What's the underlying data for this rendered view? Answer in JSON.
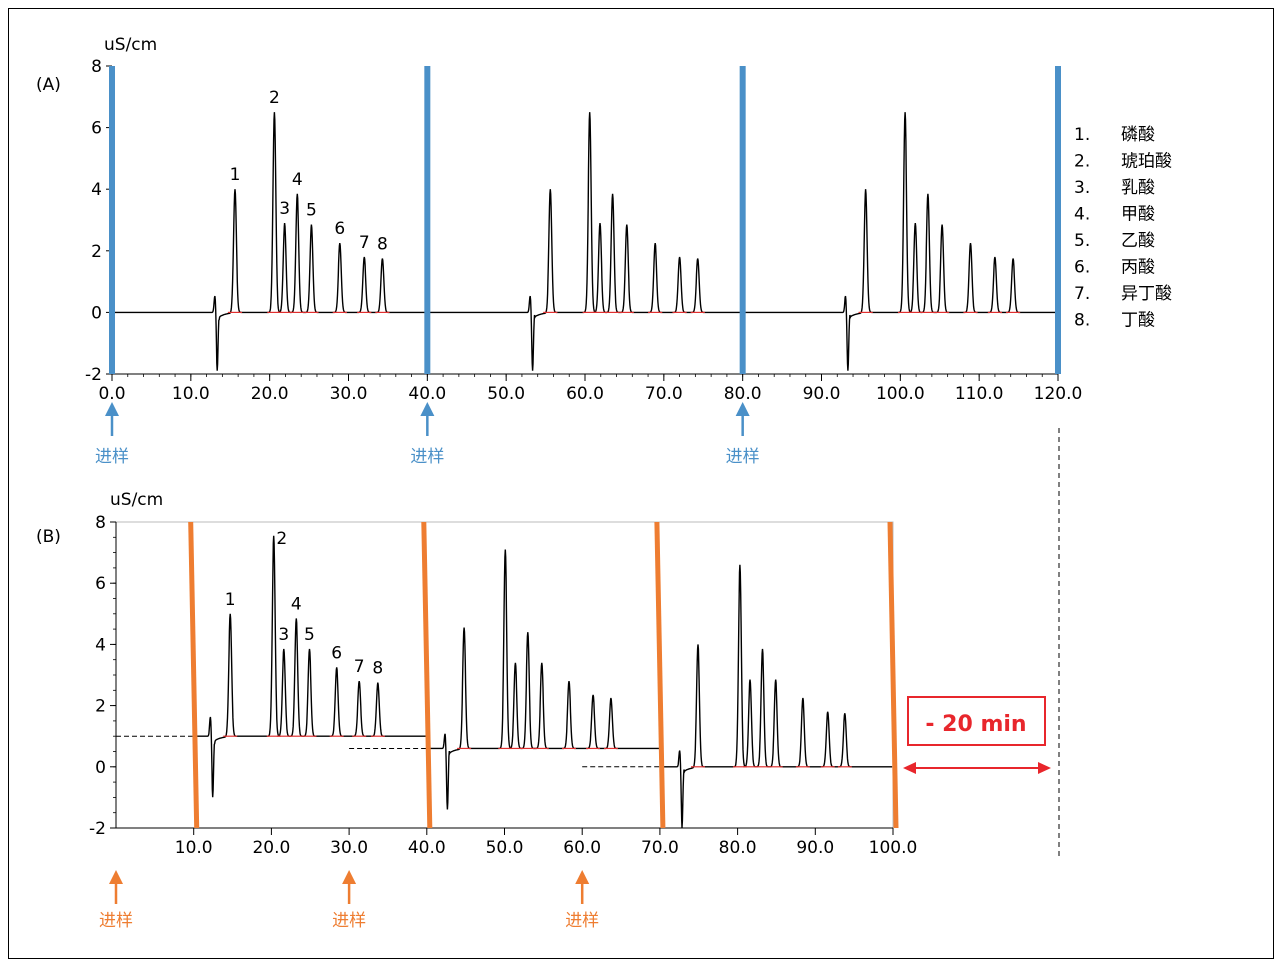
{
  "colors": {
    "trace": "#000000",
    "baseline_fill": "#e03030",
    "blue_marker": "#4a90c8",
    "orange_marker": "#ee7d31",
    "annotation_red": "#e8262c",
    "axis": "#000000"
  },
  "chart_data": [
    {
      "panel": "(A)",
      "type": "line",
      "ylabel": "uS/cm",
      "ylim": [
        -2,
        8
      ],
      "xlim": [
        0,
        120
      ],
      "y_ticks": [
        "-2",
        "0",
        "2",
        "4",
        "6",
        "8"
      ],
      "x_ticks": [
        {
          "v": 0,
          "label": "0.0"
        },
        {
          "v": 10,
          "label": "10.0"
        },
        {
          "v": 20,
          "label": "20.0"
        },
        {
          "v": 30,
          "label": "30.0"
        },
        {
          "v": 40,
          "label": "40.0"
        },
        {
          "v": 50,
          "label": "50.0"
        },
        {
          "v": 60,
          "label": "60.0"
        },
        {
          "v": 70,
          "label": "70.0"
        },
        {
          "v": 80,
          "label": "80.0"
        },
        {
          "v": 90,
          "label": "90.0"
        },
        {
          "v": 100,
          "label": "100.0"
        },
        {
          "v": 110,
          "label": "110.0"
        },
        {
          "v": 120,
          "label": "120.0"
        }
      ],
      "injection_markers": [
        0,
        40,
        80,
        120
      ],
      "injection_arrows": [
        {
          "x": 0,
          "label": "进样"
        },
        {
          "x": 40,
          "label": "进样"
        },
        {
          "x": 80,
          "label": "进样"
        }
      ],
      "runs": [
        {
          "baseline": 0,
          "dip": {
            "x": 13.2,
            "up": 0.55,
            "down": -1.9
          },
          "peaks": [
            {
              "label": "1",
              "x": 15.6,
              "h": 4.0
            },
            {
              "label": "2",
              "x": 20.6,
              "h": 6.5
            },
            {
              "label": "3",
              "x": 21.9,
              "h": 2.9
            },
            {
              "label": "4",
              "x": 23.5,
              "h": 3.85
            },
            {
              "label": "5",
              "x": 25.3,
              "h": 2.85
            },
            {
              "label": "6",
              "x": 28.9,
              "h": 2.25
            },
            {
              "label": "7",
              "x": 32.0,
              "h": 1.8
            },
            {
              "label": "8",
              "x": 34.3,
              "h": 1.75
            }
          ]
        },
        {
          "baseline": 0,
          "dip": {
            "x": 53.2,
            "up": 0.55,
            "down": -1.9
          },
          "peaks": [
            {
              "x": 55.6,
              "h": 4.0
            },
            {
              "x": 60.6,
              "h": 6.5
            },
            {
              "x": 61.9,
              "h": 2.9
            },
            {
              "x": 63.5,
              "h": 3.85
            },
            {
              "x": 65.3,
              "h": 2.85
            },
            {
              "x": 68.9,
              "h": 2.25
            },
            {
              "x": 72.0,
              "h": 1.8
            },
            {
              "x": 74.3,
              "h": 1.75
            }
          ]
        },
        {
          "baseline": 0,
          "dip": {
            "x": 93.2,
            "up": 0.55,
            "down": -1.9
          },
          "peaks": [
            {
              "x": 95.6,
              "h": 4.0
            },
            {
              "x": 100.6,
              "h": 6.5
            },
            {
              "x": 101.9,
              "h": 2.9
            },
            {
              "x": 103.5,
              "h": 3.85
            },
            {
              "x": 105.3,
              "h": 2.85
            },
            {
              "x": 108.9,
              "h": 2.25
            },
            {
              "x": 112.0,
              "h": 1.8
            },
            {
              "x": 114.3,
              "h": 1.75
            }
          ]
        }
      ],
      "legend": [
        {
          "num": "1.",
          "name": "磷酸"
        },
        {
          "num": "2.",
          "name": "琥珀酸"
        },
        {
          "num": "3.",
          "name": "乳酸"
        },
        {
          "num": "4.",
          "name": "甲酸"
        },
        {
          "num": "5.",
          "name": "乙酸"
        },
        {
          "num": "6.",
          "name": "丙酸"
        },
        {
          "num": "7.",
          "name": "异丁酸"
        },
        {
          "num": "8.",
          "name": "丁酸"
        }
      ]
    },
    {
      "panel": "(B)",
      "type": "line",
      "ylabel": "uS/cm",
      "ylim": [
        -2,
        8
      ],
      "xlim": [
        0,
        100
      ],
      "y_ticks": [
        "-2",
        "0",
        "2",
        "4",
        "6",
        "8"
      ],
      "x_ticks": [
        {
          "v": 10,
          "label": "10.0"
        },
        {
          "v": 20,
          "label": "20.0"
        },
        {
          "v": 30,
          "label": "30.0"
        },
        {
          "v": 40,
          "label": "40.0"
        },
        {
          "v": 50,
          "label": "50.0"
        },
        {
          "v": 60,
          "label": "60.0"
        },
        {
          "v": 70,
          "label": "70.0"
        },
        {
          "v": 80,
          "label": "80.0"
        },
        {
          "v": 90,
          "label": "90.0"
        },
        {
          "v": 100,
          "label": "100.0"
        }
      ],
      "injection_markers": [
        10,
        40,
        70,
        100
      ],
      "injection_arrows": [
        {
          "x": 0,
          "label": "进样"
        },
        {
          "x": 30,
          "label": "进样"
        },
        {
          "x": 60,
          "label": "进样"
        }
      ],
      "runs": [
        {
          "baseline": 1.0,
          "pre_line": {
            "from": 0,
            "to": 10
          },
          "dip": {
            "x": 12.3,
            "up": 1.65,
            "down": -1.0
          },
          "peaks": [
            {
              "label": "1",
              "x": 14.7,
              "h": 5.0
            },
            {
              "label": "2",
              "x": 20.3,
              "h": 7.55
            },
            {
              "label": "3",
              "x": 21.6,
              "h": 3.85
            },
            {
              "label": "4",
              "x": 23.2,
              "h": 4.85
            },
            {
              "label": "5",
              "x": 24.9,
              "h": 3.85
            },
            {
              "label": "6",
              "x": 28.4,
              "h": 3.25
            },
            {
              "label": "7",
              "x": 31.3,
              "h": 2.8
            },
            {
              "label": "8",
              "x": 33.7,
              "h": 2.75
            }
          ]
        },
        {
          "baseline": 0.6,
          "pre_line": {
            "from": 30,
            "to": 40
          },
          "dip": {
            "x": 42.5,
            "up": 1.1,
            "down": -1.4
          },
          "peaks": [
            {
              "x": 44.8,
              "h": 4.55
            },
            {
              "x": 50.1,
              "h": 7.1
            },
            {
              "x": 51.4,
              "h": 3.4
            },
            {
              "x": 53.0,
              "h": 4.4
            },
            {
              "x": 54.8,
              "h": 3.4
            },
            {
              "x": 58.3,
              "h": 2.8
            },
            {
              "x": 61.4,
              "h": 2.35
            },
            {
              "x": 63.7,
              "h": 2.25
            }
          ]
        },
        {
          "baseline": 0,
          "pre_line": {
            "from": 60,
            "to": 70
          },
          "dip": {
            "x": 72.7,
            "up": 0.55,
            "down": -2.0
          },
          "peaks": [
            {
              "x": 74.9,
              "h": 4.0
            },
            {
              "x": 80.3,
              "h": 6.6
            },
            {
              "x": 81.6,
              "h": 2.85
            },
            {
              "x": 83.2,
              "h": 3.85
            },
            {
              "x": 84.9,
              "h": 2.85
            },
            {
              "x": 88.4,
              "h": 2.25
            },
            {
              "x": 91.6,
              "h": 1.8
            },
            {
              "x": 93.8,
              "h": 1.75
            }
          ]
        }
      ],
      "annotation": {
        "text": "- 20 min"
      }
    }
  ]
}
